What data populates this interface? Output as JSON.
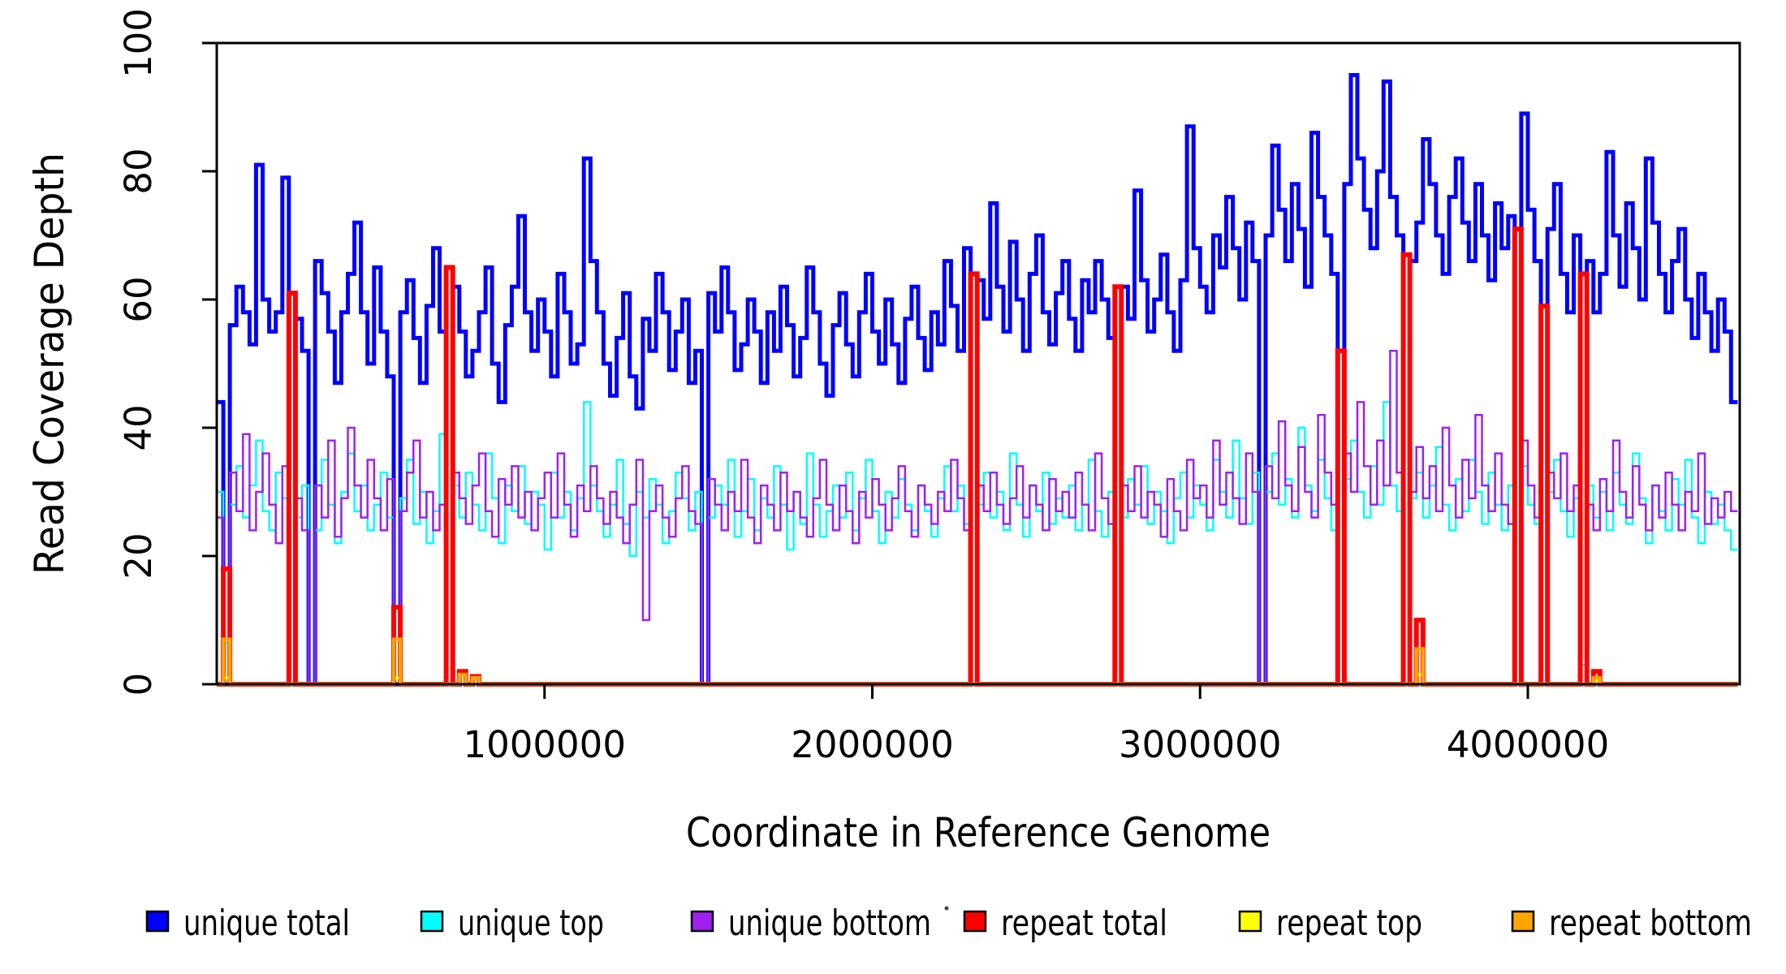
{
  "axes": {
    "x": {
      "label": "Coordinate in Reference Genome",
      "range": [
        0,
        4640000
      ],
      "ticks": [
        {
          "value": 1000000,
          "label": "1000000"
        },
        {
          "value": 2000000,
          "label": "2000000"
        },
        {
          "value": 3000000,
          "label": "3000000"
        },
        {
          "value": 4000000,
          "label": "4000000"
        }
      ]
    },
    "y": {
      "label": "Read Coverage Depth",
      "range": [
        0,
        100
      ],
      "ticks": [
        {
          "value": 0,
          "label": "0"
        },
        {
          "value": 20,
          "label": "20"
        },
        {
          "value": 40,
          "label": "40"
        },
        {
          "value": 60,
          "label": "60"
        },
        {
          "value": 80,
          "label": "80"
        },
        {
          "value": 100,
          "label": "100"
        }
      ]
    }
  },
  "legend": {
    "items": [
      {
        "label": "unique total",
        "color": "#0000ff"
      },
      {
        "label": "unique top",
        "color": "#00ffff"
      },
      {
        "label": "unique bottom",
        "color": "#a020f0"
      },
      {
        "label": "repeat total",
        "color": "#ff0000"
      },
      {
        "label": "repeat top",
        "color": "#ffff00"
      },
      {
        "label": "repeat bottom",
        "color": "#ffa500"
      }
    ]
  },
  "chart_data": {
    "type": "line",
    "style": "step",
    "bin_size": 20000,
    "x_start": 0,
    "x_end": 4640000,
    "xlabel": "Coordinate in Reference Genome",
    "ylabel": "Read Coverage Depth",
    "xlim": [
      0,
      4640000
    ],
    "ylim": [
      0,
      100
    ],
    "grid": false,
    "legend_position": "bottom",
    "series": [
      {
        "name": "unique total",
        "color": "#0000ff",
        "lwd": 5,
        "values": [
          44,
          0,
          56,
          62,
          58,
          53,
          81,
          60,
          55,
          58,
          79,
          0,
          57,
          52,
          0,
          66,
          61,
          55,
          47,
          58,
          64,
          72,
          58,
          50,
          65,
          55,
          48,
          0,
          58,
          63,
          54,
          47,
          59,
          68,
          55,
          0,
          62,
          55,
          48,
          52,
          58,
          65,
          50,
          44,
          56,
          62,
          73,
          58,
          52,
          60,
          55,
          48,
          64,
          58,
          50,
          53,
          82,
          66,
          58,
          50,
          45,
          54,
          61,
          48,
          43,
          57,
          52,
          64,
          58,
          49,
          55,
          60,
          47,
          52,
          0,
          61,
          55,
          65,
          58,
          49,
          53,
          60,
          55,
          47,
          58,
          52,
          62,
          56,
          48,
          54,
          65,
          58,
          50,
          45,
          56,
          61,
          53,
          48,
          58,
          64,
          55,
          50,
          60,
          53,
          47,
          57,
          62,
          54,
          49,
          58,
          53,
          66,
          59,
          52,
          68,
          0,
          63,
          57,
          75,
          62,
          55,
          69,
          60,
          52,
          64,
          70,
          58,
          53,
          61,
          66,
          57,
          52,
          63,
          58,
          66,
          60,
          54,
          0,
          62,
          57,
          77,
          63,
          55,
          60,
          67,
          58,
          52,
          63,
          87,
          68,
          62,
          58,
          70,
          65,
          76,
          68,
          60,
          72,
          66,
          0,
          70,
          84,
          74,
          66,
          78,
          71,
          62,
          86,
          76,
          70,
          64,
          0,
          78,
          95,
          82,
          74,
          68,
          80,
          94,
          76,
          70,
          0,
          66,
          72,
          85,
          78,
          70,
          64,
          76,
          82,
          72,
          66,
          78,
          70,
          63,
          75,
          68,
          73,
          0,
          89,
          74,
          66,
          0,
          71,
          78,
          64,
          58,
          70,
          0,
          66,
          58,
          64,
          83,
          70,
          62,
          75,
          68,
          60,
          82,
          72,
          64,
          58,
          66,
          71,
          60,
          54,
          64,
          58,
          52,
          60,
          55,
          44
        ]
      },
      {
        "name": "unique top",
        "color": "#00ffff",
        "lwd": 2.5,
        "values": [
          30,
          0,
          28,
          34,
          26,
          31,
          38,
          27,
          24,
          33,
          29,
          0,
          26,
          31,
          0,
          24,
          35,
          28,
          22,
          30,
          36,
          27,
          31,
          24,
          28,
          33,
          26,
          0,
          29,
          35,
          25,
          30,
          22,
          27,
          39,
          0,
          31,
          26,
          33,
          28,
          24,
          36,
          29,
          22,
          31,
          27,
          34,
          25,
          30,
          28,
          21,
          33,
          26,
          30,
          24,
          29,
          44,
          31,
          27,
          23,
          28,
          35,
          25,
          20,
          30,
          26,
          32,
          28,
          22,
          27,
          33,
          29,
          24,
          30,
          0,
          26,
          31,
          28,
          35,
          23,
          27,
          32,
          24,
          29,
          26,
          34,
          28,
          21,
          30,
          25,
          36,
          28,
          23,
          27,
          31,
          26,
          33,
          24,
          29,
          35,
          27,
          22,
          30,
          26,
          32,
          28,
          24,
          31,
          27,
          23,
          29,
          34,
          27,
          31,
          25,
          0,
          28,
          33,
          26,
          30,
          24,
          36,
          28,
          23,
          31,
          27,
          33,
          25,
          29,
          26,
          31,
          24,
          28,
          35,
          27,
          23,
          30,
          0,
          26,
          32,
          28,
          34,
          25,
          30,
          27,
          22,
          29,
          33,
          26,
          31,
          28,
          24,
          35,
          30,
          26,
          38,
          29,
          25,
          33,
          0,
          30,
          36,
          28,
          32,
          26,
          40,
          31,
          27,
          35,
          29,
          24,
          0,
          32,
          38,
          30,
          26,
          34,
          28,
          44,
          31,
          27,
          0,
          29,
          33,
          26,
          31,
          37,
          28,
          24,
          32,
          27,
          35,
          30,
          25,
          33,
          28,
          24,
          31,
          0,
          34,
          28,
          25,
          0,
          30,
          35,
          27,
          23,
          29,
          3,
          31,
          26,
          30,
          24,
          33,
          28,
          25,
          36,
          29,
          22,
          31,
          27,
          24,
          32,
          28,
          35,
          26,
          22,
          30,
          25,
          28,
          24,
          21
        ]
      },
      {
        "name": "unique bottom",
        "color": "#a020f0",
        "lwd": 2.5,
        "values": [
          26,
          0,
          33,
          27,
          39,
          24,
          30,
          36,
          28,
          22,
          34,
          0,
          29,
          24,
          0,
          31,
          26,
          38,
          23,
          29,
          40,
          31,
          26,
          35,
          29,
          24,
          32,
          0,
          27,
          33,
          38,
          26,
          30,
          24,
          28,
          0,
          33,
          29,
          25,
          31,
          36,
          27,
          23,
          32,
          28,
          34,
          26,
          30,
          24,
          29,
          33,
          26,
          36,
          28,
          23,
          31,
          27,
          34,
          29,
          25,
          30,
          26,
          22,
          28,
          35,
          10,
          27,
          31,
          26,
          23,
          29,
          34,
          27,
          25,
          0,
          32,
          28,
          24,
          30,
          27,
          35,
          26,
          22,
          31,
          28,
          24,
          33,
          27,
          30,
          26,
          23,
          29,
          35,
          28,
          24,
          31,
          27,
          22,
          30,
          26,
          32,
          28,
          24,
          29,
          34,
          27,
          23,
          31,
          28,
          25,
          30,
          27,
          35,
          29,
          24,
          0,
          31,
          27,
          33,
          28,
          25,
          29,
          34,
          26,
          31,
          28,
          24,
          32,
          27,
          30,
          26,
          33,
          28,
          24,
          36,
          29,
          25,
          0,
          31,
          27,
          34,
          26,
          30,
          28,
          23,
          32,
          27,
          24,
          35,
          29,
          31,
          26,
          38,
          28,
          33,
          29,
          25,
          36,
          30,
          0,
          34,
          29,
          41,
          31,
          27,
          37,
          30,
          26,
          42,
          33,
          28,
          0,
          36,
          30,
          44,
          34,
          28,
          38,
          31,
          52,
          33,
          0,
          30,
          37,
          29,
          34,
          27,
          40,
          31,
          26,
          35,
          29,
          42,
          31,
          27,
          36,
          28,
          25,
          0,
          38,
          31,
          26,
          0,
          33,
          29,
          36,
          27,
          31,
          0,
          28,
          24,
          32,
          27,
          38,
          30,
          26,
          34,
          28,
          24,
          31,
          26,
          33,
          28,
          24,
          30,
          27,
          36,
          25,
          29,
          26,
          30,
          27
        ]
      },
      {
        "name": "repeat total",
        "color": "#ff0000",
        "lwd": 6,
        "sparse": {
          "1": 18,
          "11": 61,
          "27": 12,
          "35": 65,
          "37": 2,
          "39": 1.2,
          "115": 64,
          "137": 62,
          "171": 52,
          "181": 67,
          "183": 10,
          "198": 71,
          "202": 59,
          "208": 64,
          "210": 2
        }
      },
      {
        "name": "repeat top",
        "color": "#ffff00",
        "lwd": 3,
        "sparse": {
          "1": 1,
          "27": 1,
          "183": 1.5,
          "210": 0.5
        }
      },
      {
        "name": "repeat bottom",
        "color": "#ffa500",
        "lwd": 4.5,
        "sparse": {
          "1": 7,
          "27": 7,
          "37": 1.5,
          "39": 1,
          "183": 5.5,
          "210": 1
        }
      }
    ]
  },
  "layout_colors": {
    "frame": "#000000",
    "background": "#ffffff",
    "text": "#000000"
  }
}
